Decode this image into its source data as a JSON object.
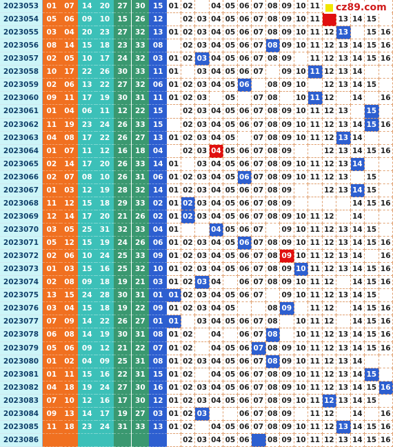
{
  "chart_data": {
    "type": "table",
    "site_label": "cz89.com",
    "colors": {
      "issue_bg": "#ccf5f8",
      "red_zone": [
        "#f07020",
        "#3cc0b8",
        "#3a9870"
      ],
      "blue_ball": "#2d5fd0",
      "highlight_red": "#e01010"
    },
    "columns": {
      "issue": "issue",
      "red_balls": [
        "r1",
        "r2",
        "r3",
        "r4",
        "r5",
        "r6"
      ],
      "blue_ball": "blue",
      "missing_map": [
        "01",
        "02",
        "03",
        "04",
        "05",
        "06",
        "07",
        "08",
        "09",
        "10",
        "11",
        "12",
        "13",
        "14",
        "15",
        "16"
      ]
    },
    "rows": [
      {
        "issue": "2023053",
        "reds": [
          "01",
          "07",
          "14",
          "20",
          "27",
          "30"
        ],
        "blue": "15",
        "map": [
          "01",
          "02",
          "",
          "04",
          "05",
          "06",
          "07",
          "08",
          "09",
          "10",
          "11",
          "",
          "",
          "",
          "",
          ""
        ],
        "hl": {}
      },
      {
        "issue": "2023054",
        "reds": [
          "05",
          "06",
          "09",
          "10",
          "15",
          "26"
        ],
        "blue": "12",
        "map": [
          "",
          "02",
          "03",
          "04",
          "05",
          "06",
          "07",
          "08",
          "09",
          "10",
          "11",
          "",
          "13",
          "14",
          "15",
          ""
        ],
        "hl": {
          "12": "red"
        }
      },
      {
        "issue": "2023055",
        "reds": [
          "03",
          "04",
          "20",
          "23",
          "27",
          "32"
        ],
        "blue": "13",
        "map": [
          "01",
          "02",
          "03",
          "04",
          "05",
          "06",
          "07",
          "08",
          "09",
          "10",
          "11",
          "12",
          "13",
          "",
          "15",
          "16"
        ],
        "hl": {
          "13": "blue"
        }
      },
      {
        "issue": "2023056",
        "reds": [
          "08",
          "14",
          "15",
          "18",
          "23",
          "33"
        ],
        "blue": "08",
        "map": [
          "",
          "02",
          "03",
          "04",
          "05",
          "06",
          "07",
          "08",
          "09",
          "10",
          "11",
          "12",
          "13",
          "14",
          "15",
          "16"
        ],
        "hl": {
          "08": "blue"
        }
      },
      {
        "issue": "2023057",
        "reds": [
          "02",
          "05",
          "10",
          "17",
          "24",
          "32"
        ],
        "blue": "03",
        "map": [
          "01",
          "02",
          "03",
          "04",
          "05",
          "06",
          "07",
          "08",
          "09",
          "",
          "11",
          "12",
          "13",
          "14",
          "15",
          "16"
        ],
        "hl": {
          "03": "blue"
        }
      },
      {
        "issue": "2023058",
        "reds": [
          "10",
          "17",
          "22",
          "26",
          "30",
          "33"
        ],
        "blue": "11",
        "map": [
          "01",
          "",
          "03",
          "04",
          "05",
          "06",
          "07",
          "",
          "09",
          "10",
          "11",
          "12",
          "13",
          "14",
          "",
          ""
        ],
        "hl": {
          "11": "blue"
        }
      },
      {
        "issue": "2023059",
        "reds": [
          "02",
          "06",
          "13",
          "22",
          "27",
          "32"
        ],
        "blue": "06",
        "map": [
          "01",
          "02",
          "03",
          "04",
          "05",
          "06",
          "",
          "08",
          "09",
          "10",
          "",
          "12",
          "13",
          "14",
          "15",
          ""
        ],
        "hl": {
          "06": "blue"
        }
      },
      {
        "issue": "2023060",
        "reds": [
          "09",
          "11",
          "17",
          "19",
          "30",
          "31"
        ],
        "blue": "11",
        "map": [
          "01",
          "02",
          "03",
          "",
          "05",
          "",
          "07",
          "08",
          "",
          "10",
          "11",
          "12",
          "",
          "14",
          "",
          "16"
        ],
        "hl": {
          "11": "blue"
        }
      },
      {
        "issue": "2023061",
        "reds": [
          "01",
          "04",
          "06",
          "11",
          "12",
          "22"
        ],
        "blue": "15",
        "map": [
          "",
          "02",
          "03",
          "04",
          "05",
          "06",
          "07",
          "08",
          "09",
          "10",
          "11",
          "12",
          "13",
          "",
          "15",
          ""
        ],
        "hl": {
          "15": "blue"
        }
      },
      {
        "issue": "2023062",
        "reds": [
          "11",
          "19",
          "23",
          "24",
          "26",
          "33"
        ],
        "blue": "15",
        "map": [
          "",
          "02",
          "03",
          "04",
          "05",
          "06",
          "07",
          "08",
          "09",
          "10",
          "11",
          "12",
          "13",
          "14",
          "15",
          "16"
        ],
        "hl": {
          "15": "blue"
        }
      },
      {
        "issue": "2023063",
        "reds": [
          "04",
          "08",
          "17",
          "22",
          "26",
          "27"
        ],
        "blue": "13",
        "map": [
          "01",
          "02",
          "03",
          "04",
          "05",
          "",
          "07",
          "08",
          "09",
          "10",
          "11",
          "12",
          "13",
          "14",
          "",
          ""
        ],
        "hl": {
          "13": "blue"
        }
      },
      {
        "issue": "2023064",
        "reds": [
          "01",
          "07",
          "11",
          "12",
          "16",
          "18"
        ],
        "blue": "04",
        "map": [
          "",
          "02",
          "03",
          "04",
          "05",
          "06",
          "07",
          "08",
          "09",
          "",
          "",
          "12",
          "13",
          "14",
          "15",
          "16"
        ],
        "hl": {
          "04": "red"
        }
      },
      {
        "issue": "2023065",
        "reds": [
          "02",
          "14",
          "17",
          "20",
          "26",
          "33"
        ],
        "blue": "14",
        "map": [
          "01",
          "",
          "03",
          "04",
          "05",
          "06",
          "07",
          "08",
          "09",
          "10",
          "11",
          "12",
          "13",
          "14",
          "",
          ""
        ],
        "hl": {
          "14": "blue"
        }
      },
      {
        "issue": "2023066",
        "reds": [
          "02",
          "07",
          "08",
          "10",
          "26",
          "31"
        ],
        "blue": "06",
        "map": [
          "01",
          "02",
          "03",
          "04",
          "05",
          "06",
          "07",
          "08",
          "09",
          "10",
          "11",
          "12",
          "13",
          "",
          "15",
          ""
        ],
        "hl": {
          "06": "blue"
        }
      },
      {
        "issue": "2023067",
        "reds": [
          "01",
          "03",
          "12",
          "19",
          "28",
          "32"
        ],
        "blue": "14",
        "map": [
          "01",
          "02",
          "03",
          "04",
          "05",
          "06",
          "07",
          "08",
          "09",
          "",
          "",
          "12",
          "13",
          "14",
          "15",
          ""
        ],
        "hl": {
          "14": "blue"
        }
      },
      {
        "issue": "2023068",
        "reds": [
          "11",
          "12",
          "15",
          "18",
          "29",
          "33"
        ],
        "blue": "02",
        "map": [
          "01",
          "02",
          "03",
          "04",
          "05",
          "06",
          "07",
          "08",
          "09",
          "",
          "",
          "",
          "",
          "14",
          "15",
          "16"
        ],
        "hl": {
          "02": "blue"
        }
      },
      {
        "issue": "2023069",
        "reds": [
          "12",
          "14",
          "17",
          "20",
          "21",
          "26"
        ],
        "blue": "02",
        "map": [
          "01",
          "02",
          "03",
          "04",
          "05",
          "06",
          "07",
          "08",
          "09",
          "10",
          "11",
          "12",
          "",
          "14",
          "",
          ""
        ],
        "hl": {
          "02": "blue"
        }
      },
      {
        "issue": "2023070",
        "reds": [
          "03",
          "05",
          "25",
          "31",
          "32",
          "33"
        ],
        "blue": "04",
        "map": [
          "01",
          "",
          "",
          "04",
          "05",
          "06",
          "07",
          "",
          "09",
          "10",
          "11",
          "12",
          "13",
          "14",
          "15",
          ""
        ],
        "hl": {
          "04": "blue"
        }
      },
      {
        "issue": "2023071",
        "reds": [
          "05",
          "12",
          "15",
          "19",
          "24",
          "26"
        ],
        "blue": "06",
        "map": [
          "01",
          "02",
          "03",
          "04",
          "05",
          "06",
          "07",
          "08",
          "09",
          "10",
          "11",
          "12",
          "13",
          "14",
          "15",
          "16"
        ],
        "hl": {
          "06": "blue"
        }
      },
      {
        "issue": "2023072",
        "reds": [
          "02",
          "06",
          "10",
          "24",
          "25",
          "33"
        ],
        "blue": "09",
        "map": [
          "01",
          "02",
          "03",
          "04",
          "05",
          "06",
          "07",
          "08",
          "09",
          "10",
          "11",
          "12",
          "13",
          "14",
          "",
          "16"
        ],
        "hl": {
          "09": "red"
        }
      },
      {
        "issue": "2023073",
        "reds": [
          "01",
          "03",
          "15",
          "16",
          "25",
          "32"
        ],
        "blue": "10",
        "map": [
          "01",
          "02",
          "03",
          "04",
          "05",
          "06",
          "07",
          "08",
          "09",
          "10",
          "11",
          "12",
          "13",
          "14",
          "15",
          "16"
        ],
        "hl": {
          "10": "blue"
        }
      },
      {
        "issue": "2023074",
        "reds": [
          "02",
          "08",
          "09",
          "18",
          "19",
          "21"
        ],
        "blue": "03",
        "map": [
          "01",
          "02",
          "03",
          "04",
          "",
          "06",
          "07",
          "08",
          "09",
          "10",
          "11",
          "12",
          "",
          "14",
          "15",
          "16"
        ],
        "hl": {
          "03": "blue"
        }
      },
      {
        "issue": "2023075",
        "reds": [
          "13",
          "15",
          "24",
          "28",
          "30",
          "31"
        ],
        "blue": "01",
        "map": [
          "01",
          "02",
          "03",
          "04",
          "05",
          "06",
          "07",
          "",
          "09",
          "10",
          "11",
          "12",
          "13",
          "14",
          "15",
          ""
        ],
        "hl": {
          "01": "blue"
        }
      },
      {
        "issue": "2023076",
        "reds": [
          "03",
          "04",
          "15",
          "18",
          "19",
          "22"
        ],
        "blue": "09",
        "map": [
          "01",
          "02",
          "03",
          "04",
          "05",
          "",
          "",
          "08",
          "09",
          "",
          "11",
          "12",
          "",
          "14",
          "15",
          "16"
        ],
        "hl": {
          "09": "blue"
        }
      },
      {
        "issue": "2023077",
        "reds": [
          "07",
          "09",
          "14",
          "22",
          "26",
          "27"
        ],
        "blue": "01",
        "map": [
          "01",
          "",
          "03",
          "04",
          "05",
          "06",
          "07",
          "08",
          "",
          "10",
          "11",
          "12",
          "",
          "14",
          "15",
          "16"
        ],
        "hl": {
          "01": "blue"
        }
      },
      {
        "issue": "2023078",
        "reds": [
          "06",
          "08",
          "14",
          "19",
          "30",
          "31"
        ],
        "blue": "08",
        "map": [
          "01",
          "02",
          "",
          "04",
          "",
          "06",
          "07",
          "08",
          "",
          "10",
          "11",
          "12",
          "13",
          "14",
          "15",
          "16"
        ],
        "hl": {
          "08": "blue"
        }
      },
      {
        "issue": "2023079",
        "reds": [
          "05",
          "06",
          "09",
          "12",
          "21",
          "22"
        ],
        "blue": "07",
        "map": [
          "01",
          "02",
          "",
          "04",
          "05",
          "06",
          "07",
          "08",
          "09",
          "10",
          "11",
          "12",
          "13",
          "14",
          "15",
          "16"
        ],
        "hl": {
          "07": "blue"
        }
      },
      {
        "issue": "2023080",
        "reds": [
          "01",
          "02",
          "04",
          "09",
          "25",
          "31"
        ],
        "blue": "08",
        "map": [
          "01",
          "02",
          "03",
          "04",
          "05",
          "06",
          "07",
          "08",
          "09",
          "10",
          "11",
          "12",
          "13",
          "14",
          "",
          ""
        ],
        "hl": {
          "08": "blue"
        }
      },
      {
        "issue": "2023081",
        "reds": [
          "01",
          "11",
          "15",
          "16",
          "22",
          "31"
        ],
        "blue": "15",
        "map": [
          "01",
          "02",
          "",
          "04",
          "05",
          "06",
          "07",
          "08",
          "09",
          "10",
          "11",
          "12",
          "13",
          "14",
          "15",
          ""
        ],
        "hl": {
          "15": "blue"
        }
      },
      {
        "issue": "2023082",
        "reds": [
          "04",
          "18",
          "19",
          "24",
          "27",
          "30"
        ],
        "blue": "16",
        "map": [
          "01",
          "02",
          "03",
          "04",
          "05",
          "06",
          "07",
          "08",
          "09",
          "10",
          "11",
          "12",
          "13",
          "14",
          "15",
          "16"
        ],
        "hl": {
          "16": "blue"
        }
      },
      {
        "issue": "2023083",
        "reds": [
          "07",
          "10",
          "12",
          "16",
          "17",
          "30"
        ],
        "blue": "12",
        "map": [
          "01",
          "02",
          "03",
          "04",
          "05",
          "06",
          "07",
          "08",
          "09",
          "10",
          "11",
          "12",
          "13",
          "14",
          "15",
          ""
        ],
        "hl": {
          "12": "blue"
        }
      },
      {
        "issue": "2023084",
        "reds": [
          "09",
          "13",
          "14",
          "17",
          "19",
          "27"
        ],
        "blue": "03",
        "map": [
          "01",
          "02",
          "03",
          "",
          "",
          "06",
          "07",
          "08",
          "09",
          "",
          "11",
          "12",
          "",
          "14",
          "",
          "16"
        ],
        "hl": {
          "03": "blue"
        }
      },
      {
        "issue": "2023085",
        "reds": [
          "11",
          "18",
          "23",
          "24",
          "31",
          "33"
        ],
        "blue": "13",
        "map": [
          "01",
          "02",
          "",
          "04",
          "05",
          "06",
          "07",
          "08",
          "09",
          "10",
          "11",
          "12",
          "13",
          "14",
          "15",
          "16"
        ],
        "hl": {
          "13": "blue"
        }
      },
      {
        "issue": "2023086",
        "reds": [
          "",
          "",
          "",
          "",
          "",
          ""
        ],
        "blue": "",
        "map": [
          "",
          "02",
          "03",
          "04",
          "05",
          "06",
          "",
          "08",
          "09",
          "10",
          "11",
          "12",
          "13",
          "14",
          "15",
          "16"
        ],
        "hl": {
          "07": "blue"
        }
      }
    ]
  }
}
